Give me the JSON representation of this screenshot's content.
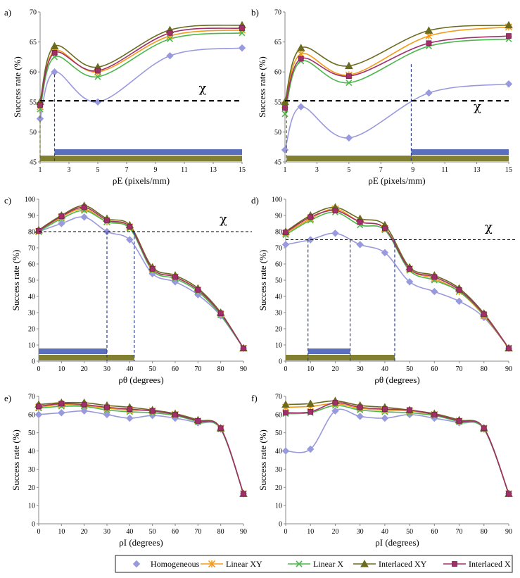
{
  "legend": {
    "series": [
      {
        "name": "Homogeneous",
        "color": "#9999dd",
        "marker": "diamond"
      },
      {
        "name": "Linear XY",
        "color": "#f59b1b",
        "marker": "star"
      },
      {
        "name": "Linear X",
        "color": "#4cb84c",
        "marker": "x"
      },
      {
        "name": "Interlaced XY",
        "color": "#6b6b1f",
        "marker": "triangle"
      },
      {
        "name": "Interlaced X",
        "color": "#a0306a",
        "marker": "square"
      }
    ]
  },
  "chart_data": [
    {
      "type": "line",
      "panel": "a)",
      "ylabel": "Success rate (%)",
      "xlabel": "ρE (pixels/mm)",
      "xlim": [
        1,
        15
      ],
      "ylim": [
        45,
        70
      ],
      "xticks": [
        1,
        3,
        5,
        7,
        9,
        11,
        13,
        15
      ],
      "yticks": [
        45,
        50,
        55,
        60,
        65,
        70
      ],
      "x": [
        1,
        2,
        5,
        10,
        15
      ],
      "series": [
        {
          "name": "Homogeneous",
          "values": [
            52.2,
            60,
            55,
            62.7,
            64
          ]
        },
        {
          "name": "Linear XY",
          "values": [
            54.2,
            63.5,
            60,
            66,
            67
          ]
        },
        {
          "name": "Linear X",
          "values": [
            53.8,
            62.5,
            59.2,
            65.5,
            66.5
          ]
        },
        {
          "name": "Interlaced XY",
          "values": [
            55,
            64.3,
            60.8,
            67,
            67.8
          ]
        },
        {
          "name": "Interlaced X",
          "values": [
            54.5,
            63.2,
            60.2,
            66.5,
            67.3
          ]
        }
      ],
      "threshold": {
        "label": "χ",
        "value": 55.2
      },
      "vlines": [
        1.0,
        2.0
      ],
      "bars": [
        {
          "from": 2.0,
          "to": 15,
          "color": "#5b6fbf"
        },
        {
          "from": 1.0,
          "to": 15,
          "color": "#808030"
        }
      ]
    },
    {
      "type": "line",
      "panel": "b)",
      "ylabel": "Success rate (%)",
      "xlabel": "ρE (pixels/mm)",
      "xlim": [
        1,
        15
      ],
      "ylim": [
        45,
        70
      ],
      "xticks": [
        1,
        3,
        5,
        7,
        9,
        11,
        13,
        15
      ],
      "yticks": [
        45,
        50,
        55,
        60,
        65,
        70
      ],
      "x": [
        1,
        2,
        5,
        10,
        15
      ],
      "series": [
        {
          "name": "Homogeneous",
          "values": [
            47,
            54.2,
            49,
            56.5,
            58
          ]
        },
        {
          "name": "Linear XY",
          "values": [
            54.5,
            63,
            59.5,
            66,
            67.5
          ]
        },
        {
          "name": "Linear X",
          "values": [
            53,
            61.8,
            58.2,
            64.3,
            65.5
          ]
        },
        {
          "name": "Interlaced XY",
          "values": [
            55,
            64,
            61,
            66.9,
            67.8
          ]
        },
        {
          "name": "Interlaced X",
          "values": [
            54,
            62.2,
            59.3,
            64.8,
            66
          ]
        }
      ],
      "threshold": {
        "label": "χ",
        "value": 55.2
      },
      "vlines": [
        1.1,
        8.9
      ],
      "bars": [
        {
          "from": 8.9,
          "to": 15,
          "color": "#5b6fbf"
        },
        {
          "from": 1.1,
          "to": 15,
          "color": "#808030"
        }
      ]
    },
    {
      "type": "line",
      "panel": "c)",
      "ylabel": "Success rate (%)",
      "xlabel": "ρθ (degrees)",
      "xlim": [
        0,
        90
      ],
      "ylim": [
        0,
        100
      ],
      "xticks": [
        0,
        10,
        20,
        30,
        40,
        50,
        60,
        70,
        80,
        90
      ],
      "yticks": [
        0,
        10,
        20,
        30,
        40,
        50,
        60,
        70,
        80,
        90,
        100
      ],
      "x": [
        0,
        10,
        20,
        30,
        40,
        50,
        60,
        70,
        80,
        90
      ],
      "series": [
        {
          "name": "Homogeneous",
          "values": [
            80,
            85,
            89,
            80,
            75,
            54,
            49,
            41,
            28,
            8
          ]
        },
        {
          "name": "Linear XY",
          "values": [
            80,
            89,
            94,
            86,
            83,
            57,
            52,
            44,
            29,
            8
          ]
        },
        {
          "name": "Linear X",
          "values": [
            80,
            88,
            93,
            86,
            82,
            56,
            51,
            43,
            28.5,
            8
          ]
        },
        {
          "name": "Interlaced XY",
          "values": [
            81,
            90,
            96,
            88,
            84,
            58,
            53,
            45,
            30,
            8
          ]
        },
        {
          "name": "Interlaced X",
          "values": [
            80.5,
            89.5,
            95,
            87,
            83,
            57,
            52,
            44,
            29.5,
            8
          ]
        }
      ],
      "threshold": {
        "label": "χ",
        "value": 80
      },
      "vlines": [
        30,
        42
      ],
      "bars": [
        {
          "from": 0,
          "to": 30,
          "color": "#5b6fbf"
        },
        {
          "from": 0,
          "to": 42,
          "color": "#808030"
        }
      ]
    },
    {
      "type": "line",
      "panel": "d)",
      "ylabel": "Success rate (%)",
      "xlabel": "ρθ (degrees)",
      "xlim": [
        0,
        90
      ],
      "ylim": [
        0,
        100
      ],
      "xticks": [
        0,
        10,
        20,
        30,
        40,
        50,
        60,
        70,
        80,
        90
      ],
      "yticks": [
        0,
        10,
        20,
        30,
        40,
        50,
        60,
        70,
        80,
        90,
        100
      ],
      "x": [
        0,
        10,
        20,
        30,
        40,
        50,
        60,
        70,
        80,
        90
      ],
      "series": [
        {
          "name": "Homogeneous",
          "values": [
            72,
            75,
            79,
            72,
            67,
            49,
            43,
            37,
            27,
            8
          ]
        },
        {
          "name": "Linear XY",
          "values": [
            79,
            88,
            94,
            86,
            82,
            57,
            51,
            43,
            28,
            8
          ]
        },
        {
          "name": "Linear X",
          "values": [
            78,
            87,
            92,
            84,
            81,
            56,
            50,
            43,
            28.5,
            8
          ]
        },
        {
          "name": "Interlaced XY",
          "values": [
            80,
            90,
            95,
            88,
            84,
            58,
            53,
            45,
            29.5,
            8
          ]
        },
        {
          "name": "Interlaced X",
          "values": [
            79.5,
            89,
            93,
            86,
            82,
            57,
            52,
            44,
            29,
            8
          ]
        }
      ],
      "threshold": {
        "label": "χ",
        "value": 75
      },
      "vlines": [
        9,
        26,
        44
      ],
      "bars": [
        {
          "from": 9,
          "to": 26,
          "color": "#5b6fbf"
        },
        {
          "from": 0,
          "to": 44,
          "color": "#808030"
        }
      ]
    },
    {
      "type": "line",
      "panel": "e)",
      "ylabel": "Success rate (%)",
      "xlabel": "ρI (degrees)",
      "xlim": [
        0,
        90
      ],
      "ylim": [
        0,
        70
      ],
      "xticks": [
        0,
        10,
        20,
        30,
        40,
        50,
        60,
        70,
        80,
        90
      ],
      "yticks": [
        0,
        10,
        20,
        30,
        40,
        50,
        60,
        70
      ],
      "x": [
        0,
        10,
        20,
        30,
        40,
        50,
        60,
        70,
        80,
        90
      ],
      "series": [
        {
          "name": "Homogeneous",
          "values": [
            60,
            61,
            62,
            60,
            58,
            59.5,
            58,
            55.5,
            52,
            16.5
          ]
        },
        {
          "name": "Linear XY",
          "values": [
            64,
            65.5,
            65,
            63.5,
            62.5,
            62,
            60,
            56.5,
            52.5,
            16.5
          ]
        },
        {
          "name": "Linear X",
          "values": [
            63.5,
            64.5,
            64.5,
            62.5,
            61.5,
            61,
            59.5,
            56,
            52,
            16.5
          ]
        },
        {
          "name": "Interlaced XY",
          "values": [
            65.5,
            66.5,
            66.5,
            65,
            64,
            62.5,
            60.5,
            57,
            52.5,
            16.5
          ]
        },
        {
          "name": "Interlaced X",
          "values": [
            64.5,
            66,
            65.5,
            64,
            63,
            62,
            60,
            56.5,
            52.5,
            16.5
          ]
        }
      ]
    },
    {
      "type": "line",
      "panel": "f)",
      "ylabel": "Success rate (%)",
      "xlabel": "ρI (degrees)",
      "xlim": [
        0,
        90
      ],
      "ylim": [
        0,
        70
      ],
      "xticks": [
        0,
        10,
        20,
        30,
        40,
        50,
        60,
        70,
        80,
        90
      ],
      "yticks": [
        0,
        10,
        20,
        30,
        40,
        50,
        60,
        70
      ],
      "x": [
        0,
        10,
        20,
        30,
        40,
        50,
        60,
        70,
        80,
        90
      ],
      "series": [
        {
          "name": "Homogeneous",
          "values": [
            40,
            41,
            62,
            59,
            58,
            60,
            58,
            55.5,
            52,
            16.5
          ]
        },
        {
          "name": "Linear XY",
          "values": [
            64,
            64.5,
            66,
            63.5,
            62.5,
            62,
            60,
            56.5,
            52.5,
            16.5
          ]
        },
        {
          "name": "Linear X",
          "values": [
            60.5,
            61,
            65,
            62.5,
            61.5,
            61,
            59.5,
            56,
            52,
            16.5
          ]
        },
        {
          "name": "Interlaced XY",
          "values": [
            65.5,
            66,
            67.5,
            65,
            64,
            62.5,
            60.5,
            57,
            52.5,
            16.5
          ]
        },
        {
          "name": "Interlaced X",
          "values": [
            61,
            61.5,
            66.5,
            64,
            63,
            62.5,
            60,
            56.5,
            52.5,
            16.5
          ]
        }
      ]
    }
  ]
}
